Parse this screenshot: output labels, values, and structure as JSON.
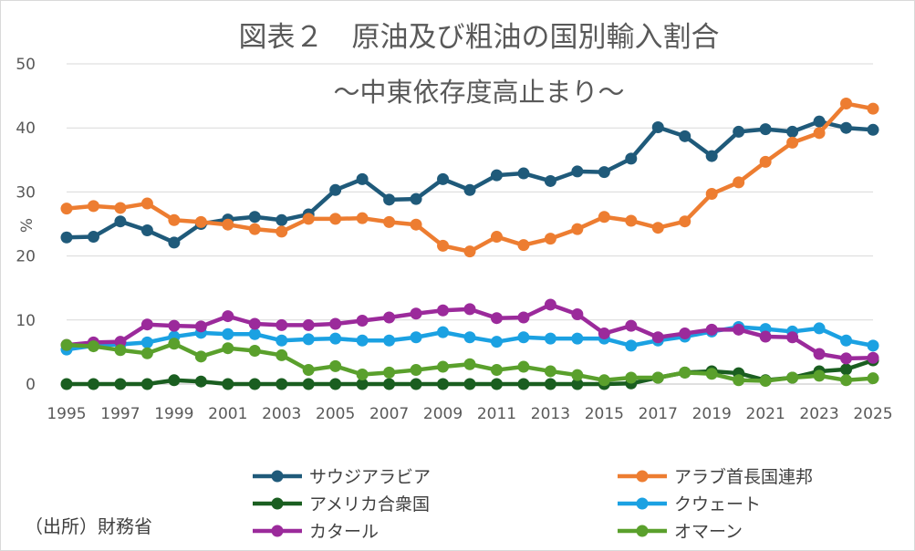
{
  "chart_data": {
    "type": "line",
    "title": "図表２　原油及び粗油の国別輸入割合",
    "subtitle": "～中東依存度高止まり～",
    "ylabel": "%",
    "xlabel": "",
    "ylim": [
      0,
      50
    ],
    "yticks": [
      0,
      10,
      20,
      30,
      40,
      50
    ],
    "x": [
      1995,
      1996,
      1997,
      1998,
      1999,
      2000,
      2001,
      2002,
      2003,
      2004,
      2005,
      2006,
      2007,
      2008,
      2009,
      2010,
      2011,
      2012,
      2013,
      2014,
      2015,
      2016,
      2017,
      2018,
      2019,
      2020,
      2021,
      2022,
      2023,
      2024,
      2025
    ],
    "xticks": [
      1995,
      1997,
      1999,
      2001,
      2003,
      2005,
      2007,
      2009,
      2011,
      2013,
      2015,
      2017,
      2019,
      2021,
      2023,
      2025
    ],
    "grid": "horizontal",
    "legend_position": "bottom",
    "source": "（出所）財務省",
    "series": [
      {
        "name": "サウジアラビア",
        "color": "#1f5a7a",
        "values": [
          22.9,
          23.0,
          25.4,
          24.0,
          22.1,
          25.0,
          25.7,
          26.1,
          25.6,
          26.5,
          30.3,
          32.0,
          28.8,
          28.9,
          32.0,
          30.3,
          32.6,
          32.9,
          31.7,
          33.2,
          33.1,
          35.2,
          40.1,
          38.7,
          35.6,
          39.4,
          39.8,
          39.4,
          41.0,
          40.0,
          39.7
        ]
      },
      {
        "name": "アラブ首長国連邦",
        "color": "#ed7d31",
        "values": [
          27.4,
          27.8,
          27.5,
          28.2,
          25.6,
          25.3,
          24.9,
          24.2,
          23.8,
          25.8,
          25.8,
          25.9,
          25.3,
          24.9,
          21.6,
          20.7,
          23.0,
          21.7,
          22.7,
          24.2,
          26.1,
          25.5,
          24.4,
          25.4,
          29.7,
          31.5,
          34.7,
          37.7,
          39.2,
          43.8,
          43.0
        ]
      },
      {
        "name": "アメリカ合衆国",
        "color": "#1a5e20",
        "values": [
          0.0,
          0.0,
          0.0,
          0.0,
          0.6,
          0.4,
          0.0,
          0.0,
          0.0,
          0.0,
          0.0,
          0.0,
          0.0,
          0.0,
          0.0,
          0.0,
          0.0,
          0.0,
          0.0,
          0.0,
          0.0,
          0.1,
          1.0,
          1.8,
          2.0,
          1.7,
          0.6,
          1.0,
          2.0,
          2.3,
          3.7
        ]
      },
      {
        "name": "クウェート",
        "color": "#1ba1e2",
        "values": [
          5.4,
          6.0,
          6.2,
          6.5,
          7.4,
          8.0,
          7.8,
          7.8,
          6.8,
          7.0,
          7.1,
          6.8,
          6.8,
          7.3,
          8.1,
          7.3,
          6.6,
          7.3,
          7.1,
          7.1,
          7.1,
          6.0,
          6.8,
          7.4,
          8.2,
          8.9,
          8.6,
          8.2,
          8.7,
          6.8,
          6.0
        ]
      },
      {
        "name": "カタール",
        "color": "#9b2a9b",
        "values": [
          6.1,
          6.5,
          6.6,
          9.3,
          9.1,
          9.0,
          10.6,
          9.4,
          9.2,
          9.2,
          9.4,
          9.9,
          10.4,
          11.0,
          11.5,
          11.7,
          10.3,
          10.4,
          12.4,
          10.9,
          7.9,
          9.1,
          7.3,
          7.9,
          8.5,
          8.5,
          7.4,
          7.3,
          4.7,
          4.0,
          4.1
        ]
      },
      {
        "name": "オマーン",
        "color": "#5aa02c",
        "values": [
          6.1,
          5.9,
          5.3,
          4.8,
          6.3,
          4.3,
          5.6,
          5.2,
          4.5,
          2.2,
          2.8,
          1.5,
          1.8,
          2.2,
          2.7,
          3.1,
          2.2,
          2.7,
          2.0,
          1.4,
          0.6,
          1.0,
          1.0,
          1.8,
          1.6,
          0.6,
          0.5,
          1.0,
          1.3,
          0.6,
          0.9
        ]
      }
    ]
  }
}
